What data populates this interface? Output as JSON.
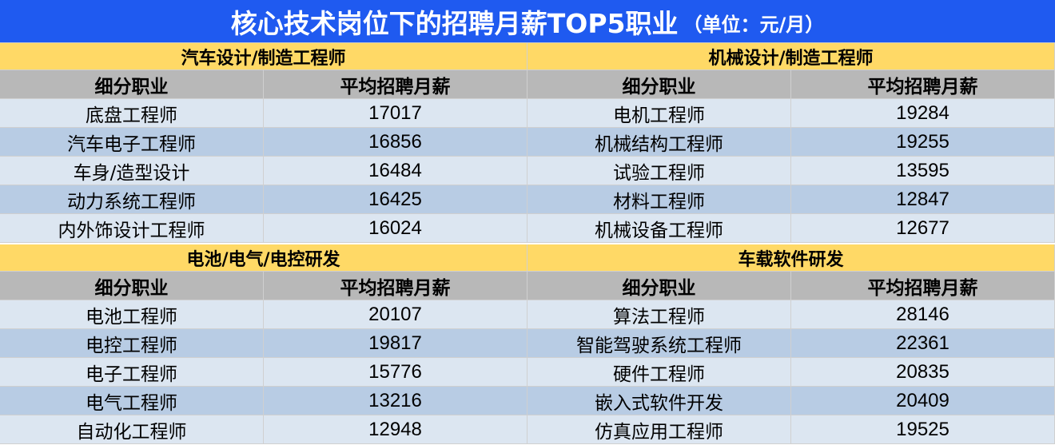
{
  "title": {
    "main": "核心技术岗位下的招聘月薪TOP5职业",
    "unit": "（单位：元/月）"
  },
  "chart_data": {
    "type": "table",
    "columns": [
      "细分职业",
      "平均招聘月薪"
    ],
    "tables": [
      {
        "category": "汽车设计/制造工程师",
        "rows": [
          {
            "job": "底盘工程师",
            "salary": "17017"
          },
          {
            "job": "汽车电子工程师",
            "salary": "16856"
          },
          {
            "job": "车身/造型设计",
            "salary": "16484"
          },
          {
            "job": "动力系统工程师",
            "salary": "16425"
          },
          {
            "job": "内外饰设计工程师",
            "salary": "16024"
          }
        ]
      },
      {
        "category": "机械设计/制造工程师",
        "rows": [
          {
            "job": "电机工程师",
            "salary": "19284"
          },
          {
            "job": "机械结构工程师",
            "salary": "19255"
          },
          {
            "job": "试验工程师",
            "salary": "13595"
          },
          {
            "job": "材料工程师",
            "salary": "12847"
          },
          {
            "job": "机械设备工程师",
            "salary": "12677"
          }
        ]
      },
      {
        "category": "电池/电气/电控研发",
        "rows": [
          {
            "job": "电池工程师",
            "salary": "20107"
          },
          {
            "job": "电控工程师",
            "salary": "19817"
          },
          {
            "job": "电子工程师",
            "salary": "15776"
          },
          {
            "job": "电气工程师",
            "salary": "13216"
          },
          {
            "job": "自动化工程师",
            "salary": "12948"
          }
        ]
      },
      {
        "category": "车载软件研发",
        "rows": [
          {
            "job": "算法工程师",
            "salary": "28146"
          },
          {
            "job": "智能驾驶系统工程师",
            "salary": "22361"
          },
          {
            "job": "硬件工程师",
            "salary": "20835"
          },
          {
            "job": "嵌入式软件开发",
            "salary": "20409"
          },
          {
            "job": "仿真应用工程师",
            "salary": "19525"
          }
        ]
      }
    ]
  },
  "colors": {
    "title_bg": "#1f5af0",
    "panel_header_bg": "#ffd966",
    "column_header_bg": "#b8b8b8",
    "row_light": "#dce6f1",
    "row_dark": "#b8cce4"
  }
}
